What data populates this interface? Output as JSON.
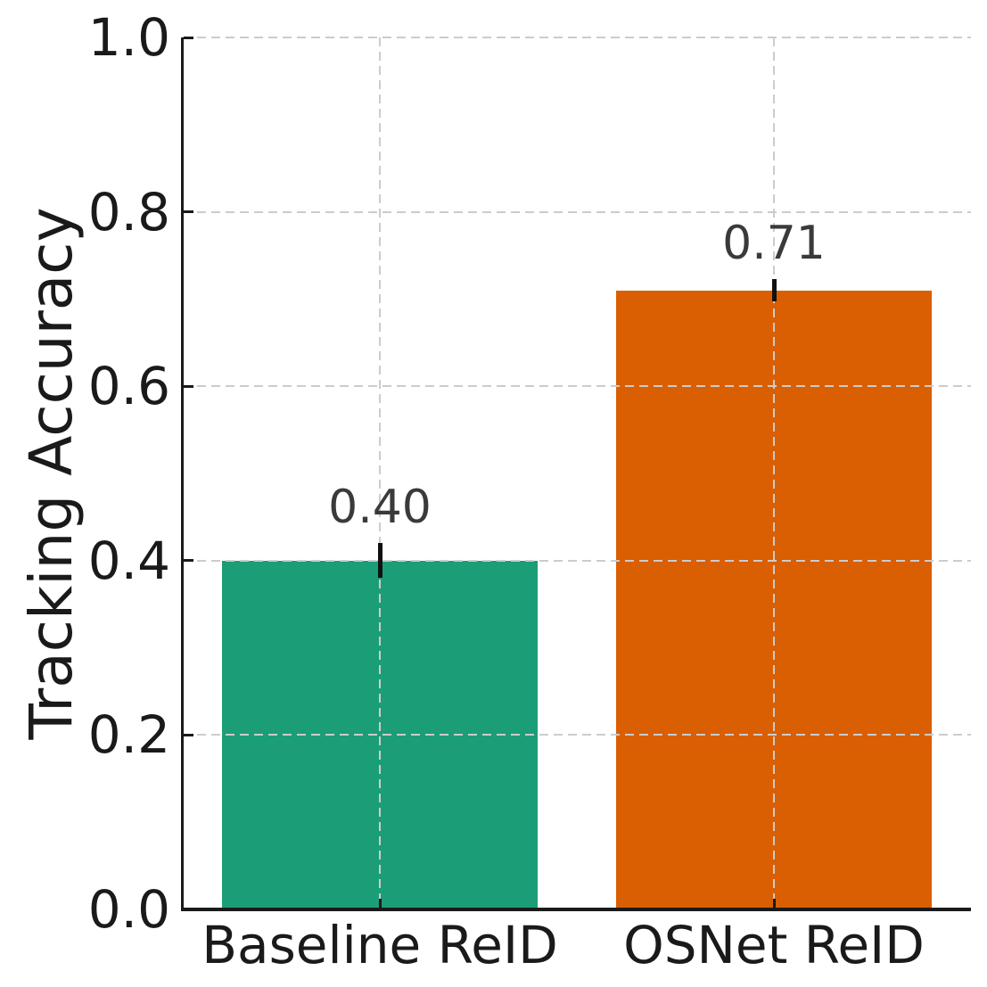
{
  "chart_data": {
    "type": "bar",
    "title": "",
    "xlabel": "",
    "ylabel": "Tracking Accuracy",
    "categories": [
      "Baseline ReID",
      "OSNet ReID"
    ],
    "values": [
      0.4,
      0.71
    ],
    "errors": [
      0.02,
      0.013
    ],
    "value_labels": [
      "0.40",
      "0.71"
    ],
    "bar_colors": [
      "#1b9e77",
      "#d95f02"
    ],
    "ylim": [
      0.0,
      1.0
    ],
    "yticks": [
      0.0,
      0.2,
      0.4,
      0.6,
      0.8,
      1.0
    ],
    "ytick_labels": [
      "0.0",
      "0.2",
      "0.4",
      "0.6",
      "0.8",
      "1.0"
    ],
    "grid": "both-axes-dashed-over-bars",
    "legend": "none",
    "colors": {
      "spine": "#1a1a1a",
      "grid": "#cccccc",
      "tick_label": "#1a1a1a",
      "value_label": "#3a3a3a",
      "error_bar": "#111111",
      "background": "#ffffff"
    }
  }
}
